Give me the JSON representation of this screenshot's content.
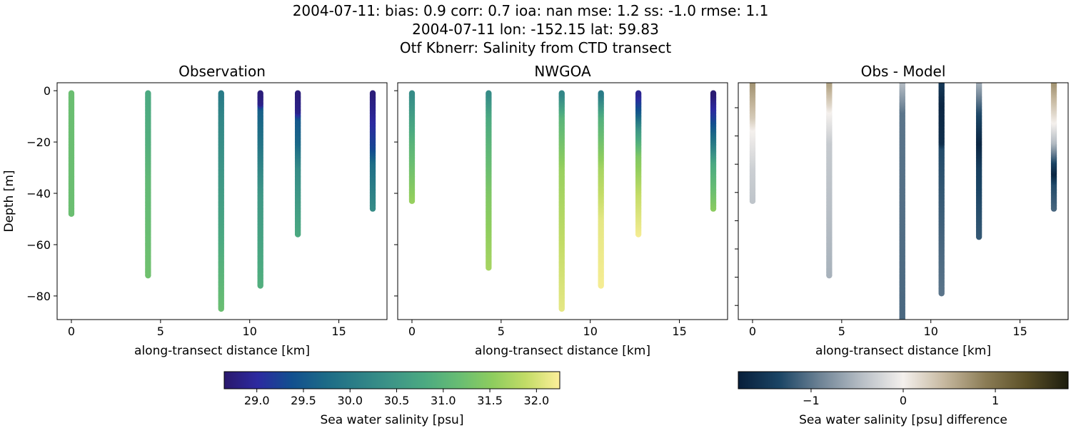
{
  "suptitle": [
    "2004-07-11: bias: 0.9  corr: 0.7  ioa: nan  mse: 1.2  ss: -1.0  rmse: 1.1",
    "2004-07-11 lon: -152.15 lat: 59.83",
    "Otf Kbnerr: Salinity from CTD transect"
  ],
  "chart_data": [
    {
      "type": "scatter",
      "title": "Observation",
      "xlabel": "along-transect distance [km]",
      "ylabel": "Depth [m]",
      "xlim": [
        -0.8,
        17.7
      ],
      "ylim": [
        -89.2,
        3.1
      ],
      "xticks": [
        0,
        5,
        10,
        15
      ],
      "yticks": [
        0,
        -20,
        -40,
        -60,
        -80
      ],
      "colormap": "haline",
      "stations": [
        {
          "x": 0.0,
          "profile": [
            [
              -1,
              31.2
            ],
            [
              -48,
              31.2
            ]
          ]
        },
        {
          "x": 4.3,
          "profile": [
            [
              -1,
              30.8
            ],
            [
              -20,
              30.9
            ],
            [
              -35,
              31.1
            ],
            [
              -72,
              31.25
            ]
          ]
        },
        {
          "x": 8.4,
          "profile": [
            [
              -1,
              30.0
            ],
            [
              -10,
              30.2
            ],
            [
              -50,
              30.7
            ],
            [
              -85,
              31.2
            ]
          ]
        },
        {
          "x": 10.6,
          "profile": [
            [
              -1,
              28.75
            ],
            [
              -5,
              28.85
            ],
            [
              -7,
              29.6
            ],
            [
              -20,
              29.9
            ],
            [
              -40,
              30.5
            ],
            [
              -76,
              30.9
            ]
          ]
        },
        {
          "x": 12.7,
          "profile": [
            [
              -1,
              28.75
            ],
            [
              -8,
              28.85
            ],
            [
              -11,
              29.5
            ],
            [
              -20,
              29.7
            ],
            [
              -30,
              30.3
            ],
            [
              -56,
              30.8
            ]
          ]
        },
        {
          "x": 16.9,
          "profile": [
            [
              -1,
              28.75
            ],
            [
              -8,
              28.9
            ],
            [
              -22,
              29.3
            ],
            [
              -28,
              29.8
            ],
            [
              -46,
              30.3
            ]
          ]
        }
      ]
    },
    {
      "type": "scatter",
      "title": "NWGOA",
      "xlabel": "along-transect distance [km]",
      "xlim": [
        -0.8,
        17.7
      ],
      "ylim": [
        -89.2,
        3.1
      ],
      "xticks": [
        0,
        5,
        10,
        15
      ],
      "colormap": "haline",
      "stations": [
        {
          "x": 0.0,
          "profile": [
            [
              -1,
              30.3
            ],
            [
              -20,
              31.0
            ],
            [
              -43,
              31.6
            ]
          ]
        },
        {
          "x": 4.3,
          "profile": [
            [
              -1,
              30.3
            ],
            [
              -10,
              30.8
            ],
            [
              -40,
              31.4
            ],
            [
              -69,
              31.7
            ]
          ]
        },
        {
          "x": 8.4,
          "profile": [
            [
              -1,
              30.2
            ],
            [
              -10,
              31.0
            ],
            [
              -30,
              31.6
            ],
            [
              -60,
              31.9
            ],
            [
              -85,
              32.1
            ]
          ]
        },
        {
          "x": 10.6,
          "profile": [
            [
              -1,
              30.0
            ],
            [
              -10,
              30.9
            ],
            [
              -30,
              31.7
            ],
            [
              -50,
              32.1
            ],
            [
              -76,
              32.2
            ]
          ]
        },
        {
          "x": 12.7,
          "profile": [
            [
              -1,
              28.9
            ],
            [
              -8,
              29.5
            ],
            [
              -15,
              30.5
            ],
            [
              -25,
              31.4
            ],
            [
              -40,
              31.9
            ],
            [
              -56,
              32.2
            ]
          ]
        },
        {
          "x": 16.9,
          "profile": [
            [
              -1,
              28.7
            ],
            [
              -10,
              29.2
            ],
            [
              -20,
              30.0
            ],
            [
              -28,
              30.8
            ],
            [
              -46,
              31.5
            ]
          ]
        }
      ]
    },
    {
      "type": "scatter",
      "title": "Obs - Model",
      "xlabel": "along-transect distance [km]",
      "xlim": [
        -0.8,
        17.7
      ],
      "ylim": [
        -89.2,
        3.1
      ],
      "xticks": [
        0,
        5,
        10,
        15
      ],
      "colormap": "diff",
      "stations": [
        {
          "x": 0.0,
          "profile": [
            [
              3,
              0.7
            ],
            [
              -10,
              0.3
            ],
            [
              -15,
              0
            ],
            [
              -30,
              -0.3
            ],
            [
              -43,
              -0.4
            ]
          ]
        },
        {
          "x": 4.3,
          "profile": [
            [
              3,
              0.6
            ],
            [
              -5,
              0.2
            ],
            [
              -8,
              0
            ],
            [
              -20,
              -0.35
            ],
            [
              -72,
              -0.55
            ]
          ]
        },
        {
          "x": 8.4,
          "profile": [
            [
              3,
              -0.5
            ],
            [
              -8,
              -1.0
            ],
            [
              -92,
              -1.1
            ]
          ]
        },
        {
          "x": 10.6,
          "profile": [
            [
              3,
              -1.5
            ],
            [
              -5,
              -1.7
            ],
            [
              -20,
              -1.6
            ],
            [
              -22,
              -1.3
            ],
            [
              -79,
              -1.0
            ]
          ]
        },
        {
          "x": 12.7,
          "profile": [
            [
              3,
              -0.6
            ],
            [
              -8,
              -1.3
            ],
            [
              -20,
              -1.7
            ],
            [
              -30,
              -1.4
            ],
            [
              -57,
              -1.2
            ]
          ]
        },
        {
          "x": 16.9,
          "profile": [
            [
              3,
              0.7
            ],
            [
              -8,
              0.2
            ],
            [
              -12,
              0
            ],
            [
              -20,
              -0.5
            ],
            [
              -28,
              -1.4
            ],
            [
              -32,
              -1.7
            ],
            [
              -36,
              -1.3
            ],
            [
              -46,
              -1.1
            ]
          ]
        }
      ]
    }
  ],
  "colorbars": [
    {
      "label": "Sea water salinity [psu]",
      "range": [
        28.65,
        32.25
      ],
      "ticks": [
        "29.0",
        "29.5",
        "30.0",
        "30.5",
        "31.0",
        "31.5",
        "32.0"
      ],
      "colors": [
        "#2a186c",
        "#2c2aa0",
        "#124f8f",
        "#1c6a87",
        "#2d8087",
        "#3d9587",
        "#4caa81",
        "#68bd73",
        "#8ecd5e",
        "#c3dc67",
        "#fdef9a"
      ]
    },
    {
      "label": "Sea water salinity [psu] difference",
      "range": [
        -1.79,
        1.79
      ],
      "ticks": [
        "−1",
        "0",
        "1"
      ],
      "colors": [
        "#071e3a",
        "#1b4565",
        "#6f8496",
        "#b8bfc6",
        "#f4f0ed",
        "#c6b89f",
        "#8b7c55",
        "#5a4f27",
        "#1c1c0d"
      ]
    }
  ]
}
